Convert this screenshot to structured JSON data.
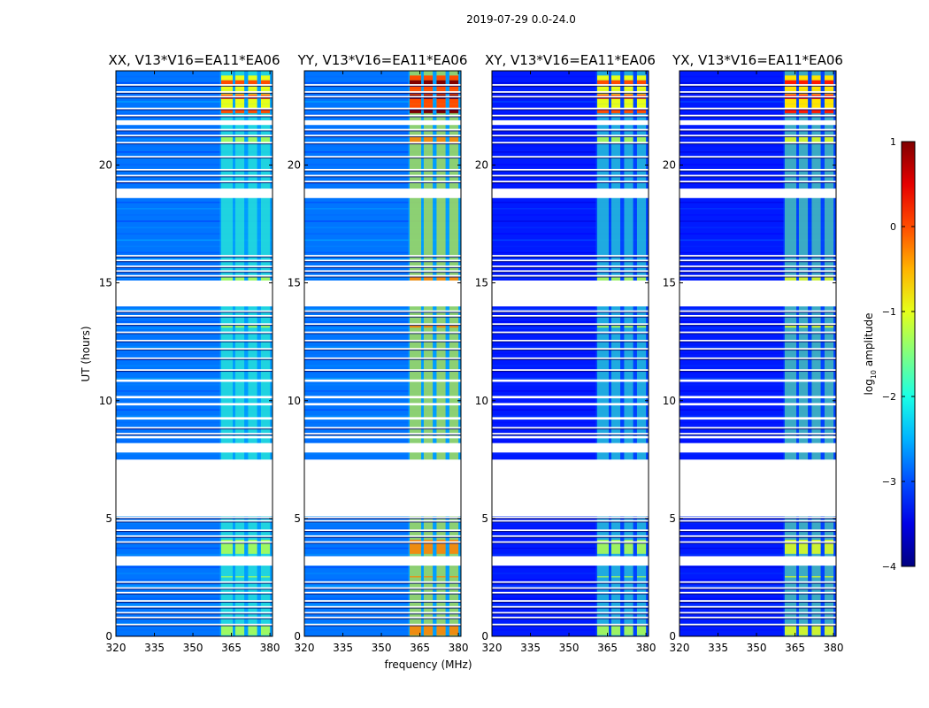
{
  "figure_title": "2019-07-29 0.0-24.0",
  "chart_data": {
    "type": "heatmap",
    "suptitle": "2019-07-29 0.0-24.0",
    "xlabel": "frequency (MHz)",
    "ylabel": "UT (hours)",
    "xlim": [
      320,
      381
    ],
    "ylim": [
      0,
      24
    ],
    "xticks": [
      320,
      335,
      350,
      365,
      380
    ],
    "yticks": [
      0,
      5,
      10,
      15,
      20
    ],
    "panels": [
      {
        "title": "XX, V13*V16=EA11*EA06",
        "rfi_level": 0.55,
        "background_level": 0.24
      },
      {
        "title": "YY, V13*V16=EA11*EA06",
        "rfi_level": 0.75,
        "background_level": 0.24
      },
      {
        "title": "XY, V13*V16=EA11*EA06",
        "rfi_level": 0.55,
        "background_level": 0.15
      },
      {
        "title": "YX, V13*V16=EA11*EA06",
        "rfi_level": 0.6,
        "background_level": 0.15
      }
    ],
    "rfi_band_mhz": [
      360.5,
      381
    ],
    "rfi_channels_mhz": [
      [
        361,
        365.5
      ],
      [
        366.5,
        370
      ],
      [
        371.5,
        375
      ],
      [
        376.5,
        380
      ]
    ],
    "strong_rfi_hours": [
      22.2,
      23.8
    ],
    "data_gaps_hours": [
      [
        3.0,
        3.4
      ],
      [
        5.1,
        7.5
      ],
      [
        7.8,
        8.2
      ],
      [
        8.4,
        8.5
      ],
      [
        9.2,
        9.3
      ],
      [
        9.8,
        9.9
      ],
      [
        10.1,
        10.2
      ],
      [
        10.8,
        10.9
      ],
      [
        14.0,
        15.1
      ],
      [
        18.6,
        19.0
      ],
      [
        21.7,
        21.9
      ]
    ],
    "thin_gap_lines_hours": [
      0.5,
      0.8,
      1.0,
      1.25,
      1.5,
      1.85,
      2.05,
      2.3,
      4.0,
      4.25,
      4.5,
      4.9,
      5.05,
      8.6,
      8.85,
      11.3,
      11.8,
      12.2,
      12.55,
      12.9,
      13.25,
      13.6,
      13.8,
      15.3,
      15.5,
      15.7,
      15.95,
      16.15,
      19.3,
      19.55,
      19.8,
      20.35,
      20.95,
      21.25,
      21.5,
      22.1,
      22.4,
      22.9,
      23.1,
      23.4
    ],
    "colorbar": {
      "label": "log10 amplitude",
      "label_prefix": "log",
      "label_sub": "10",
      "label_suffix": " amplitude",
      "min": -4,
      "max": 1,
      "ticks": [
        1,
        0,
        -1,
        -2,
        -3,
        -4
      ],
      "colormap": "jet"
    }
  }
}
